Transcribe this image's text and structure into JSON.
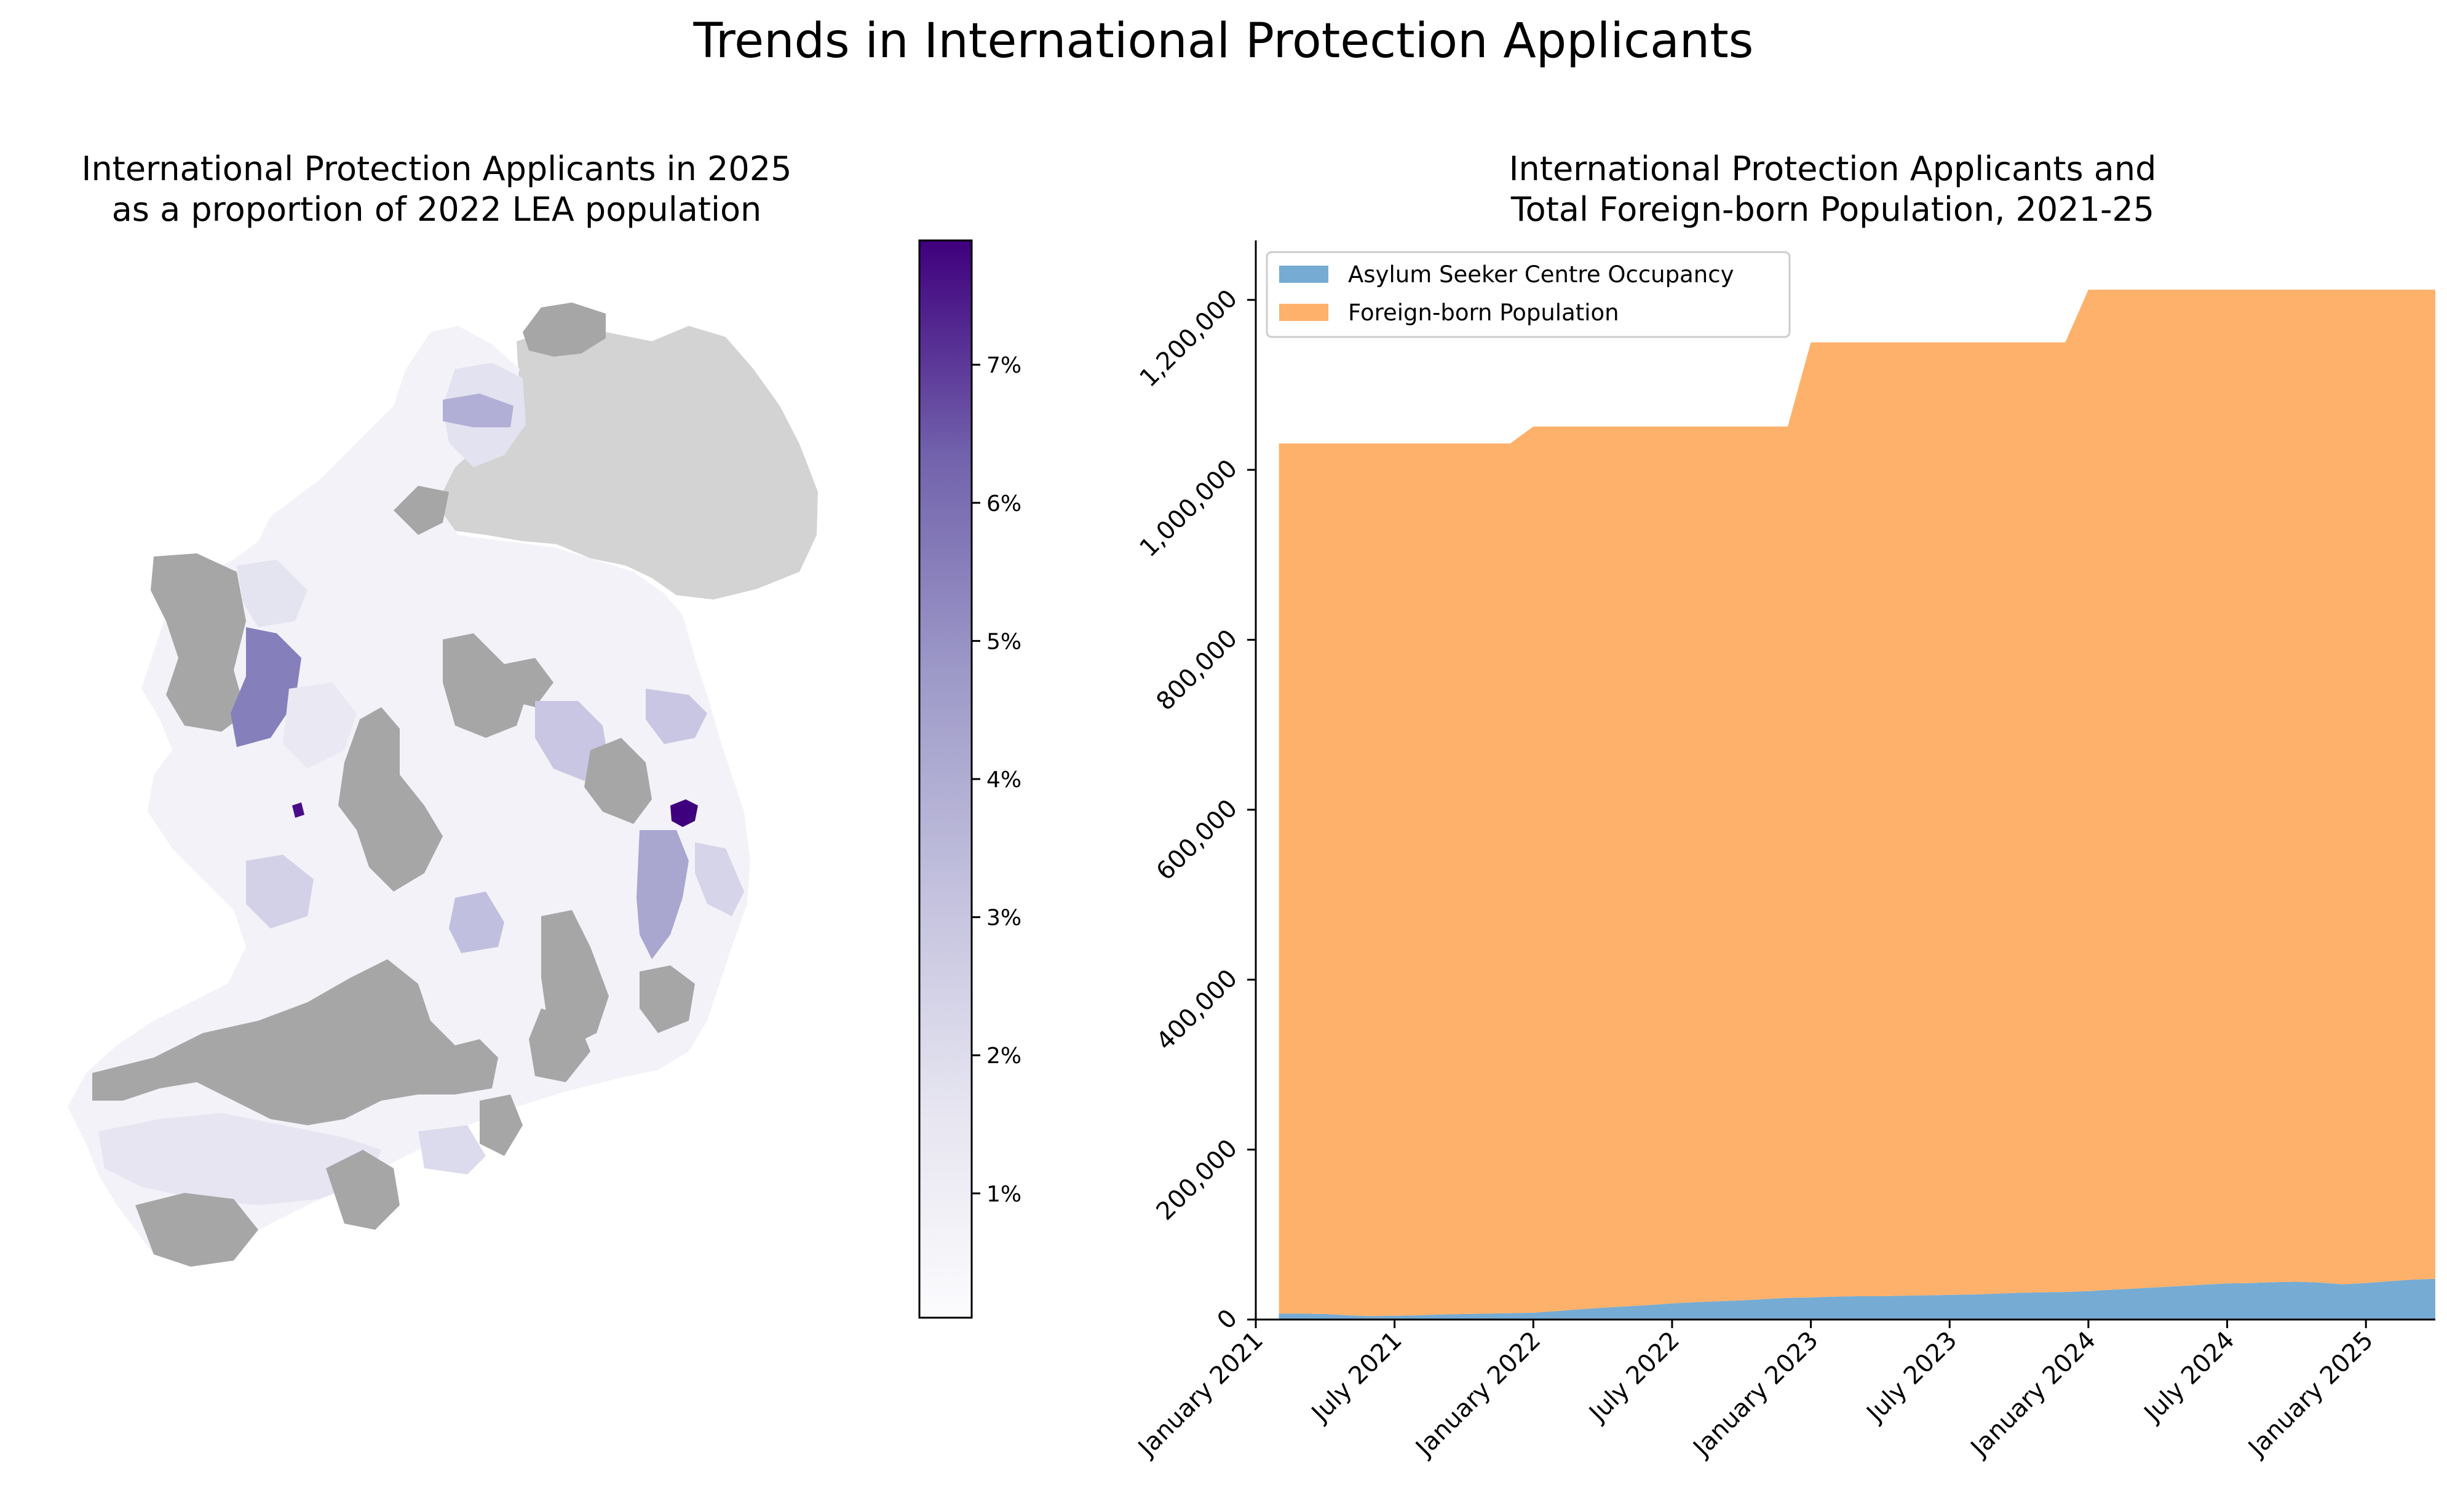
{
  "figure": {
    "title": "Trends in International Protection Applicants"
  },
  "map": {
    "title_line1": "International Protection Applicants in 2025",
    "title_line2": "as a proportion of 2022 LEA population",
    "colorbar": {
      "min": 0.1,
      "max": 7.9,
      "ticks": [
        1,
        2,
        3,
        4,
        5,
        6,
        7
      ],
      "tick_labels": [
        "1%",
        "2%",
        "3%",
        "4%",
        "5%",
        "6%",
        "7%"
      ],
      "colormap": "Purples",
      "color_low": "#fcfbfd",
      "color_high": "#3f007d"
    },
    "colors": {
      "no_data": "#a6a6a6",
      "northern_ireland": "#d3d3d3"
    }
  },
  "chart_data": {
    "type": "area",
    "stacked": true,
    "title_line1": "International Protection Applicants and",
    "title_line2": "Total Foreign-born Population, 2021-25",
    "x": [
      "2021-02",
      "2021-03",
      "2021-04",
      "2021-05",
      "2021-06",
      "2021-07",
      "2021-08",
      "2021-09",
      "2021-10",
      "2021-11",
      "2021-12",
      "2022-01",
      "2022-02",
      "2022-03",
      "2022-04",
      "2022-05",
      "2022-06",
      "2022-07",
      "2022-08",
      "2022-09",
      "2022-10",
      "2022-11",
      "2022-12",
      "2023-01",
      "2023-02",
      "2023-03",
      "2023-04",
      "2023-05",
      "2023-06",
      "2023-07",
      "2023-08",
      "2023-09",
      "2023-10",
      "2023-11",
      "2023-12",
      "2024-01",
      "2024-02",
      "2024-03",
      "2024-04",
      "2024-05",
      "2024-06",
      "2024-07",
      "2024-08",
      "2024-09",
      "2024-10",
      "2024-11",
      "2024-12",
      "2025-01",
      "2025-02",
      "2025-03",
      "2025-04"
    ],
    "series": [
      {
        "name": "Asylum Seeker Centre Occupancy",
        "color": "#76abd3",
        "values": [
          7000,
          7000,
          6500,
          5000,
          4000,
          4500,
          5000,
          6000,
          6500,
          7000,
          7500,
          8000,
          10000,
          12000,
          14000,
          15500,
          17000,
          19000,
          20500,
          21500,
          22500,
          24000,
          25500,
          26000,
          27000,
          27500,
          27500,
          28000,
          28500,
          29000,
          29500,
          30500,
          31500,
          32000,
          32500,
          33500,
          35000,
          36500,
          38000,
          39500,
          41000,
          42500,
          43000,
          44000,
          44500,
          43500,
          41500,
          43000,
          45000,
          47000,
          48000
        ]
      },
      {
        "name": "Foreign-born Population",
        "color": "#feb16b",
        "values": [
          1024000,
          1024000,
          1024500,
          1026000,
          1027000,
          1026500,
          1026000,
          1025000,
          1024500,
          1024000,
          1023500,
          1043000,
          1041000,
          1039000,
          1037000,
          1035500,
          1034000,
          1032000,
          1030500,
          1029500,
          1028500,
          1027000,
          1025500,
          1124000,
          1123000,
          1122500,
          1122500,
          1122000,
          1121500,
          1121000,
          1120500,
          1119500,
          1118500,
          1118000,
          1117500,
          1178500,
          1177000,
          1175500,
          1174000,
          1172500,
          1171000,
          1169500,
          1169000,
          1168000,
          1167500,
          1168500,
          1170500,
          1169000,
          1167000,
          1165000,
          1164000
        ]
      }
    ],
    "total_values": [
      1031000,
      1031000,
      1031000,
      1031000,
      1031000,
      1031000,
      1031000,
      1031000,
      1031000,
      1031000,
      1031000,
      1051000,
      1051000,
      1051000,
      1051000,
      1051000,
      1051000,
      1051000,
      1051000,
      1051000,
      1051000,
      1051000,
      1051000,
      1150000,
      1150000,
      1150000,
      1150000,
      1150000,
      1150000,
      1150000,
      1150000,
      1150000,
      1150000,
      1150000,
      1150000,
      1212000,
      1212000,
      1212000,
      1212000,
      1212000,
      1212000,
      1212000,
      1212000,
      1212000,
      1212000,
      1212000,
      1212000,
      1212000,
      1212000,
      1212000,
      1212000
    ],
    "yticks": [
      0,
      200000,
      400000,
      600000,
      800000,
      1000000,
      1200000
    ],
    "ytick_labels": [
      "0",
      "200,000",
      "400,000",
      "600,000",
      "800,000",
      "1,000,000",
      "1,200,000"
    ],
    "ylim": [
      0,
      1270000
    ],
    "xticks": [
      "2021-01",
      "2021-07",
      "2022-01",
      "2022-07",
      "2023-01",
      "2023-07",
      "2024-01",
      "2024-07",
      "2025-01"
    ],
    "xtick_labels": [
      "January 2021",
      "July 2021",
      "January 2022",
      "July 2022",
      "January 2023",
      "July 2023",
      "January 2024",
      "July 2024",
      "January 2025"
    ],
    "xlim": [
      "2021-01",
      "2025-04"
    ],
    "xlabel": "",
    "ylabel": "",
    "grid": false,
    "legend": {
      "placement": "upper-left",
      "entries": [
        "Asylum Seeker Centre Occupancy",
        "Foreign-born Population"
      ]
    }
  }
}
